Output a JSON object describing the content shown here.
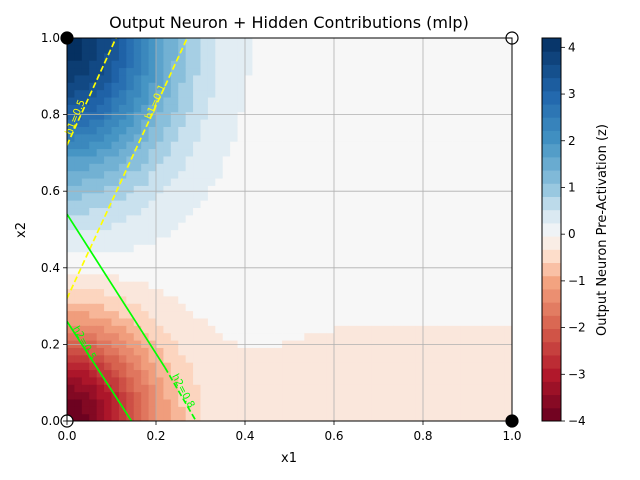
{
  "chart_data": {
    "type": "heatmap",
    "title": "Output Neuron + Hidden Contributions (mlp)",
    "xlabel": "x1",
    "ylabel": "x2",
    "xlim": [
      0,
      1
    ],
    "ylim": [
      0,
      1
    ],
    "grid": true,
    "x_ticks": [
      "0.0",
      "0.2",
      "0.4",
      "0.6",
      "0.8",
      "1.0"
    ],
    "y_ticks": [
      "0.0",
      "0.2",
      "0.4",
      "0.6",
      "0.8",
      "1.0"
    ],
    "colorbar": {
      "label": "Output Neuron Pre-Activation (z)",
      "colormap": "RdBu",
      "range": [
        -4,
        4.2
      ],
      "ticks": [
        "4",
        "3",
        "2",
        "1",
        "0",
        "−1",
        "−2",
        "−3",
        "−4"
      ],
      "tick_values": [
        4,
        3,
        2,
        1,
        0,
        -1,
        -2,
        -3,
        -4
      ],
      "low_color": "#67001f",
      "mid_color": "#f7f7f7",
      "high_color": "#053061"
    },
    "field_extrema": [
      {
        "x": 0.0,
        "y": 1.0,
        "z": 4.2
      },
      {
        "x": 0.0,
        "y": 0.0,
        "z": -4.0
      },
      {
        "x": 0.3,
        "y": 0.65,
        "z": 0.0
      },
      {
        "x": 1.0,
        "y": 0.0,
        "z": -0.3
      },
      {
        "x": 1.0,
        "y": 1.0,
        "z": 0.0
      }
    ],
    "contour_lines": [
      {
        "label": "h1=0.5",
        "color": "#ffff00",
        "style": "dashed",
        "points": [
          [
            0.0,
            0.72
          ],
          [
            0.11,
            1.0
          ]
        ]
      },
      {
        "label": "h1=0.1",
        "color": "#ffff00",
        "style": "dashed",
        "points": [
          [
            0.0,
            0.32
          ],
          [
            0.27,
            1.0
          ]
        ]
      },
      {
        "label": "h2=0.5",
        "color": "#00ff00",
        "style": "solid",
        "points": [
          [
            0.0,
            0.54
          ],
          [
            0.22,
            0.14
          ]
        ]
      },
      {
        "label": "h2=0.5",
        "color": "#00ff00",
        "style": "solid",
        "points": [
          [
            0.0,
            0.26
          ],
          [
            0.145,
            0.0
          ]
        ]
      },
      {
        "label": "h2=0.8",
        "color": "#00ff00",
        "style": "dashed",
        "points": [
          [
            0.22,
            0.14
          ],
          [
            0.29,
            0.0
          ]
        ]
      }
    ],
    "contour_labels": [
      {
        "text": "h1=0.5",
        "x": 0.025,
        "y": 0.79,
        "angle": -68,
        "color": "#ffff00"
      },
      {
        "text": "h1=0.1",
        "x": 0.205,
        "y": 0.83,
        "angle": -66,
        "color": "#ffff00"
      },
      {
        "text": "h2=0.5",
        "x": 0.033,
        "y": 0.2,
        "angle": 61,
        "color": "#00ff00"
      },
      {
        "text": "h2=0.8",
        "x": 0.255,
        "y": 0.075,
        "angle": 62,
        "color": "#00ff00"
      }
    ],
    "points": [
      {
        "x": 0,
        "y": 0,
        "filled": false
      },
      {
        "x": 0,
        "y": 1,
        "filled": true
      },
      {
        "x": 1,
        "y": 0,
        "filled": true
      },
      {
        "x": 1,
        "y": 1,
        "filled": false
      }
    ]
  }
}
